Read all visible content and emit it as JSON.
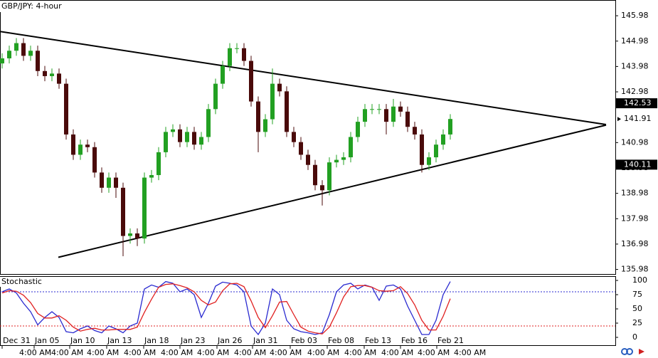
{
  "chart_data": [
    {
      "type": "candlestick",
      "title": "GBP/JPY: 4-hour",
      "open": [
        144.1,
        144.3,
        144.6,
        144.9,
        144.4,
        144.6,
        143.8,
        143.6,
        143.7,
        143.3,
        141.3,
        140.5,
        140.9,
        140.8,
        139.8,
        139.2,
        139.6,
        139.2,
        137.3,
        137.4,
        137.2,
        139.6,
        139.7,
        140.6,
        141.4,
        141.5,
        141.0,
        141.4,
        140.9,
        141.2,
        142.3,
        143.3,
        144.0,
        144.7,
        144.7,
        144.2,
        142.6,
        141.4,
        141.9,
        143.3,
        143.0,
        141.4,
        141.0,
        140.5,
        140.1,
        139.3,
        139.1,
        140.2,
        140.3,
        140.4,
        141.2,
        141.8,
        142.3,
        142.3,
        142.3,
        141.8,
        142.4,
        142.2,
        141.6,
        141.3,
        140.1,
        140.4,
        140.9,
        141.3
      ],
      "high": [
        144.5,
        144.8,
        145.1,
        145.1,
        144.8,
        144.8,
        144.0,
        143.9,
        143.9,
        143.5,
        141.5,
        141.1,
        141.1,
        141.0,
        140.0,
        139.8,
        139.8,
        139.4,
        137.6,
        137.6,
        139.8,
        139.9,
        140.8,
        141.6,
        141.7,
        141.7,
        141.6,
        141.6,
        141.4,
        142.5,
        143.5,
        144.2,
        144.9,
        144.9,
        144.9,
        144.4,
        142.8,
        142.1,
        143.9,
        143.5,
        143.2,
        141.6,
        141.2,
        140.7,
        140.3,
        139.5,
        140.4,
        140.5,
        140.6,
        141.4,
        142.0,
        142.5,
        142.5,
        142.5,
        142.5,
        142.7,
        142.6,
        142.4,
        141.8,
        141.5,
        140.6,
        141.1,
        141.5,
        142.1
      ],
      "low": [
        143.9,
        144.1,
        144.4,
        144.2,
        144.2,
        143.6,
        143.4,
        143.4,
        143.1,
        141.1,
        140.3,
        140.3,
        140.6,
        139.6,
        139.0,
        139.0,
        138.8,
        136.5,
        137.0,
        136.9,
        137.0,
        139.4,
        139.5,
        140.4,
        141.2,
        140.8,
        140.8,
        140.7,
        140.7,
        141.0,
        142.1,
        143.1,
        143.8,
        144.5,
        144.0,
        142.4,
        140.6,
        141.2,
        141.7,
        142.8,
        141.2,
        140.8,
        140.3,
        139.9,
        139.1,
        138.5,
        138.9,
        140.0,
        140.1,
        140.2,
        141.0,
        141.6,
        142.1,
        142.1,
        141.3,
        141.6,
        142.0,
        141.4,
        141.1,
        139.8,
        139.9,
        140.2,
        140.7,
        141.1
      ],
      "close": [
        144.3,
        144.6,
        144.9,
        144.4,
        144.6,
        143.8,
        143.6,
        143.7,
        143.3,
        141.3,
        140.5,
        140.9,
        140.8,
        139.8,
        139.2,
        139.6,
        139.2,
        137.3,
        137.4,
        137.2,
        139.6,
        139.7,
        140.6,
        141.4,
        141.5,
        141.0,
        141.4,
        140.9,
        141.2,
        142.3,
        143.3,
        144.0,
        144.7,
        144.7,
        144.2,
        142.6,
        141.4,
        141.9,
        143.3,
        143.0,
        141.4,
        141.0,
        140.5,
        140.1,
        139.3,
        139.1,
        140.2,
        140.3,
        140.4,
        141.2,
        141.8,
        142.3,
        142.3,
        142.3,
        141.8,
        142.4,
        142.2,
        141.6,
        141.3,
        140.1,
        140.4,
        140.9,
        141.3,
        141.91
      ],
      "up_color": "#22a022",
      "down_color": "#4a0a0a",
      "xlim": [
        -0.3,
        86.2
      ],
      "ylim": [
        135.8,
        146.6
      ],
      "yticks": [
        145.98,
        144.98,
        143.98,
        142.98,
        140.98,
        139.98,
        138.98,
        137.98,
        136.98,
        135.98
      ],
      "trendlines": [
        {
          "points": [
            [
              -0.3,
              145.36
            ],
            [
              84.9,
              141.69
            ]
          ],
          "color": "#000000"
        },
        {
          "points": [
            [
              7.9,
              136.46
            ],
            [
              84.9,
              141.67
            ]
          ],
          "color": "#000000"
        }
      ],
      "price_labels": [
        {
          "value": 142.53,
          "color": "#000000"
        },
        {
          "value": 141.91,
          "color": "#ffffff"
        },
        {
          "value": 140.11,
          "color": "#000000"
        }
      ]
    },
    {
      "type": "line",
      "title": "Stochastic",
      "series": [
        {
          "color": "#2a2ad0",
          "values": [
            80,
            85,
            78,
            60,
            45,
            22,
            35,
            45,
            35,
            10,
            8,
            15,
            20,
            12,
            8,
            20,
            15,
            8,
            20,
            25,
            85,
            92,
            88,
            98,
            95,
            80,
            85,
            75,
            35,
            60,
            90,
            97,
            95,
            92,
            80,
            20,
            5,
            25,
            85,
            75,
            30,
            15,
            10,
            8,
            5,
            8,
            40,
            80,
            92,
            95,
            85,
            92,
            88,
            65,
            90,
            92,
            85,
            55,
            30,
            5,
            5,
            30,
            75,
            98
          ]
        },
        {
          "color": "#e02020",
          "values": [
            78,
            82,
            81,
            74,
            61,
            42,
            34,
            34,
            38,
            30,
            18,
            11,
            14,
            16,
            13,
            13,
            14,
            14,
            14,
            18,
            44,
            67,
            88,
            93,
            94,
            91,
            87,
            80,
            65,
            57,
            62,
            82,
            94,
            95,
            89,
            64,
            35,
            17,
            38,
            62,
            63,
            40,
            18,
            11,
            8,
            6,
            18,
            43,
            71,
            89,
            91,
            91,
            88,
            82,
            81,
            82,
            89,
            77,
            57,
            30,
            13,
            13,
            37,
            68
          ]
        }
      ],
      "levels": [
        {
          "value": 80,
          "color": "#2a2ad0"
        },
        {
          "value": 20,
          "color": "#e02020"
        }
      ],
      "xlim": [
        -0.3,
        86.2
      ],
      "ylim": [
        -13.75,
        107.5
      ],
      "yticks": [
        100,
        75,
        50,
        25,
        0
      ],
      "xticks": [
        {
          "value": 0,
          "label": "Dec 31"
        },
        {
          "value": 4.5,
          "label": "Jan 05"
        },
        {
          "value": 9.5,
          "label": "Jan 10"
        },
        {
          "value": 14.7,
          "label": "Jan 13"
        },
        {
          "value": 19.9,
          "label": "Jan 18"
        },
        {
          "value": 25,
          "label": "Jan 23"
        },
        {
          "value": 30.2,
          "label": "Jan 26"
        },
        {
          "value": 35.2,
          "label": "Jan 31"
        },
        {
          "value": 40.5,
          "label": "Feb 03"
        },
        {
          "value": 45.7,
          "label": "Feb 08"
        },
        {
          "value": 50.9,
          "label": "Feb 13"
        },
        {
          "value": 56,
          "label": "Feb 16"
        },
        {
          "value": 61.1,
          "label": "Feb 21"
        }
      ],
      "xtick_times": [
        "4:00 AM",
        "4:00 AM",
        "4:00 AM",
        "4:00 AM",
        "4:00 AM",
        "4:00 AM",
        "4:00 AM",
        "4:00 AM",
        "4:00 AM",
        "4:00 AM",
        "4:00 AM",
        "4:00 AM",
        "4:00 AM"
      ]
    }
  ]
}
